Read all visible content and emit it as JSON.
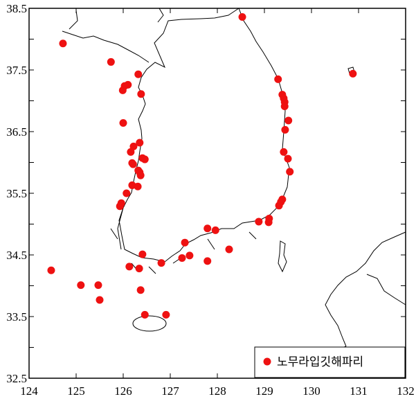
{
  "chart_data": {
    "type": "scatter",
    "title": "",
    "xlabel": "",
    "ylabel": "",
    "xlim": [
      124,
      132
    ],
    "ylim": [
      32.5,
      38.5
    ],
    "x_ticks": [
      "124",
      "125",
      "126",
      "127",
      "128",
      "129",
      "130",
      "131",
      "132"
    ],
    "y_ticks": [
      "32.5",
      "33.5",
      "34.5",
      "35.5",
      "36.5",
      "37.5",
      "38.5"
    ],
    "grid": false,
    "legend_placement": "bottom-right",
    "marker_color": "#ee1111",
    "series": [
      {
        "name": "노무라입깃해파리",
        "points": [
          [
            124.72,
            37.93
          ],
          [
            125.74,
            37.63
          ],
          [
            126.32,
            37.43
          ],
          [
            126.1,
            37.26
          ],
          [
            126.03,
            37.24
          ],
          [
            125.99,
            37.17
          ],
          [
            126.38,
            37.11
          ],
          [
            126.0,
            36.64
          ],
          [
            126.35,
            36.32
          ],
          [
            126.22,
            36.26
          ],
          [
            126.16,
            36.17
          ],
          [
            126.41,
            36.07
          ],
          [
            126.46,
            36.05
          ],
          [
            126.19,
            35.99
          ],
          [
            126.21,
            35.97
          ],
          [
            126.32,
            35.87
          ],
          [
            126.35,
            35.84
          ],
          [
            126.37,
            35.79
          ],
          [
            126.19,
            35.63
          ],
          [
            126.31,
            35.61
          ],
          [
            126.07,
            35.5
          ],
          [
            125.96,
            35.34
          ],
          [
            125.93,
            35.29
          ],
          [
            128.88,
            35.04
          ],
          [
            127.79,
            34.93
          ],
          [
            127.96,
            34.9
          ],
          [
            127.31,
            34.7
          ],
          [
            128.25,
            34.59
          ],
          [
            126.41,
            34.51
          ],
          [
            127.41,
            34.49
          ],
          [
            127.25,
            34.45
          ],
          [
            126.81,
            34.37
          ],
          [
            127.79,
            34.4
          ],
          [
            126.13,
            34.31
          ],
          [
            126.34,
            34.28
          ],
          [
            124.47,
            34.25
          ],
          [
            125.1,
            34.01
          ],
          [
            125.47,
            34.01
          ],
          [
            126.37,
            33.93
          ],
          [
            125.5,
            33.77
          ],
          [
            126.46,
            33.53
          ],
          [
            126.91,
            33.53
          ],
          [
            128.53,
            38.36
          ],
          [
            130.88,
            37.44
          ],
          [
            129.29,
            37.35
          ],
          [
            129.38,
            37.1
          ],
          [
            129.41,
            37.04
          ],
          [
            129.43,
            36.98
          ],
          [
            129.43,
            36.91
          ],
          [
            129.51,
            36.68
          ],
          [
            129.44,
            36.53
          ],
          [
            129.41,
            36.17
          ],
          [
            129.5,
            36.06
          ],
          [
            129.54,
            35.85
          ],
          [
            129.38,
            35.4
          ],
          [
            129.35,
            35.36
          ],
          [
            129.31,
            35.3
          ],
          [
            129.1,
            35.09
          ],
          [
            129.09,
            35.03
          ]
        ]
      }
    ]
  }
}
